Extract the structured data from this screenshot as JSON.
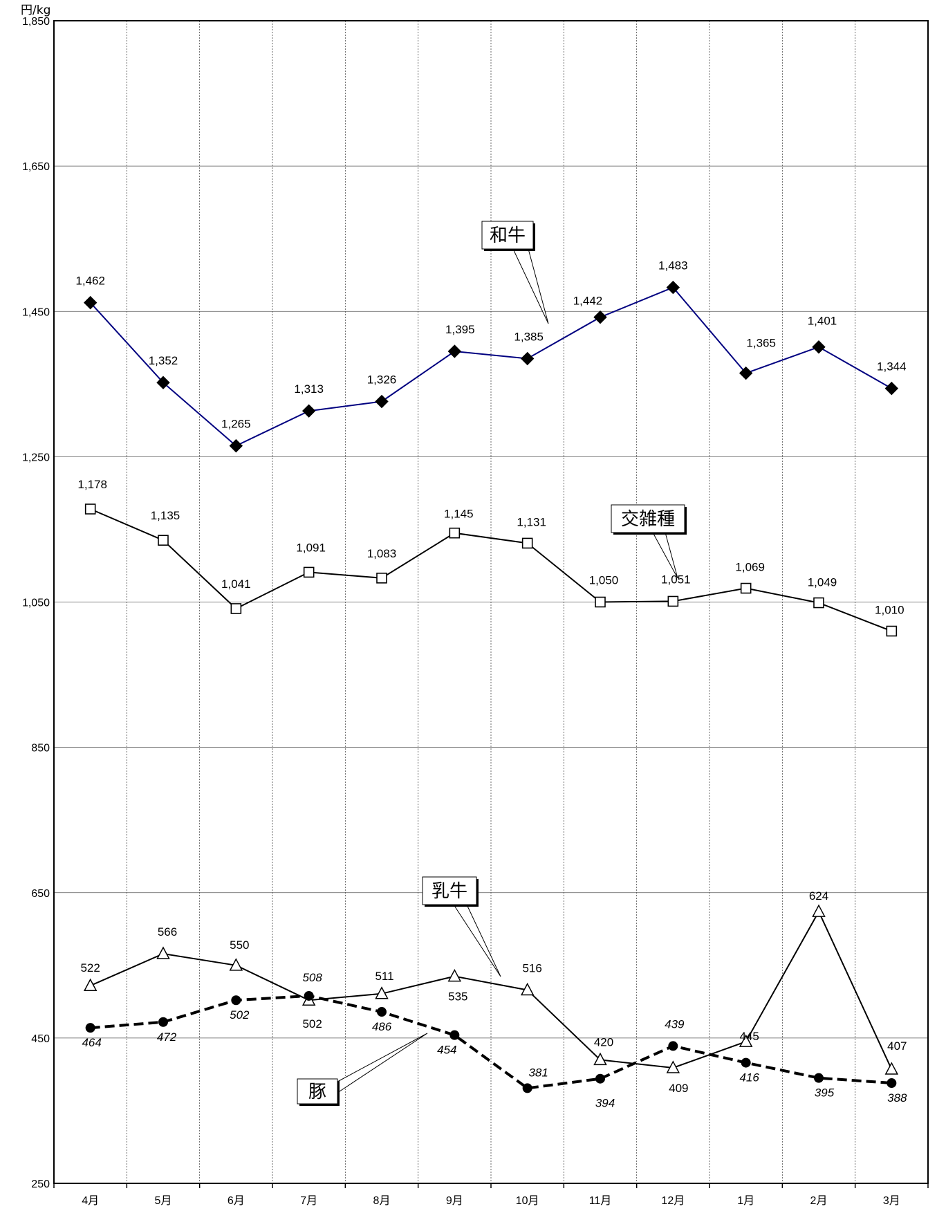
{
  "chart_data": {
    "type": "line",
    "unit_label": "円/kg",
    "categories": [
      "4月",
      "5月",
      "6月",
      "7月",
      "8月",
      "9月",
      "10月",
      "11月",
      "12月",
      "1月",
      "2月",
      "3月"
    ],
    "ylim": [
      250,
      1850
    ],
    "yticks": [
      250,
      450,
      650,
      850,
      1050,
      1250,
      1450,
      1650,
      1850
    ],
    "ytick_labels": [
      "250",
      "450",
      "650",
      "850",
      "1,050",
      "1,250",
      "1,450",
      "1,650",
      "1,850"
    ],
    "grid": true,
    "series": [
      {
        "name": "和牛",
        "values": [
          1462,
          1352,
          1265,
          1313,
          1326,
          1395,
          1385,
          1442,
          1483,
          1365,
          1401,
          1344
        ],
        "labels": [
          "1,462",
          "1,352",
          "1,265",
          "1,313",
          "1,326",
          "1,395",
          "1,385",
          "1,442",
          "1,483",
          "1,365",
          "1,401",
          "1,344"
        ],
        "color": "#000080",
        "marker": "diamond-filled",
        "dash": "solid"
      },
      {
        "name": "交雑種",
        "values": [
          1178,
          1135,
          1041,
          1091,
          1083,
          1145,
          1131,
          1050,
          1051,
          1069,
          1049,
          1010
        ],
        "labels": [
          "1,178",
          "1,135",
          "1,041",
          "1,091",
          "1,083",
          "1,145",
          "1,131",
          "1,050",
          "1,051",
          "1,069",
          "1,049",
          "1,010"
        ],
        "color": "#000000",
        "marker": "square-open",
        "dash": "solid"
      },
      {
        "name": "乳牛",
        "values": [
          522,
          566,
          550,
          502,
          511,
          535,
          516,
          420,
          409,
          445,
          624,
          407
        ],
        "labels": [
          "522",
          "566",
          "550",
          "502",
          "511",
          "535",
          "516",
          "420",
          "409",
          "445",
          "624",
          "407"
        ],
        "color": "#000000",
        "marker": "triangle-open",
        "dash": "solid"
      },
      {
        "name": "豚",
        "values": [
          464,
          472,
          502,
          508,
          486,
          454,
          381,
          394,
          439,
          416,
          395,
          388
        ],
        "labels": [
          "464",
          "472",
          "502",
          "508",
          "486",
          "454",
          "381",
          "394",
          "439",
          "416",
          "395",
          "388"
        ],
        "color": "#000000",
        "marker": "circle-filled",
        "dash": "dashed"
      }
    ]
  }
}
